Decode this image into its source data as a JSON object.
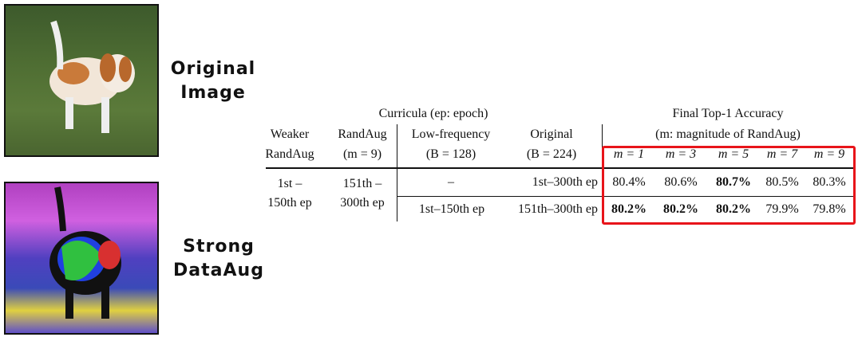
{
  "images": {
    "original": {
      "label_line1": "Original",
      "label_line2": "Image"
    },
    "augmented": {
      "label_line1": "Strong",
      "label_line2": "DataAug"
    }
  },
  "table": {
    "group_curricula": "Curricula (ep: epoch)",
    "group_accuracy": "Final Top-1 Accuracy",
    "accuracy_sub": "(m: magnitude of RandAug)",
    "col_weaker": [
      "Weaker",
      "RandAug"
    ],
    "col_randaug": [
      "RandAug",
      "(m = 9)"
    ],
    "col_lowfreq": [
      "Low-frequency",
      "(B = 128)"
    ],
    "col_original": [
      "Original",
      "(B = 224)"
    ],
    "m_headers": [
      "m = 1",
      "m = 3",
      "m = 5",
      "m = 7",
      "m = 9"
    ],
    "weaker_cell": [
      "1st –",
      "150th ep"
    ],
    "randaug_cell": [
      "151th –",
      "300th ep"
    ],
    "rows": [
      {
        "lowfreq": "–",
        "original": "1st–300th ep",
        "values": [
          "80.4%",
          "80.6%",
          "80.7%",
          "80.5%",
          "80.3%"
        ],
        "bold": [
          false,
          false,
          true,
          false,
          false
        ]
      },
      {
        "lowfreq": "1st–150th ep",
        "original": "151th–300th ep",
        "values": [
          "80.2%",
          "80.2%",
          "80.2%",
          "79.9%",
          "79.8%"
        ],
        "bold": [
          true,
          true,
          true,
          false,
          false
        ]
      }
    ],
    "highlight_color": "#e8141a"
  }
}
